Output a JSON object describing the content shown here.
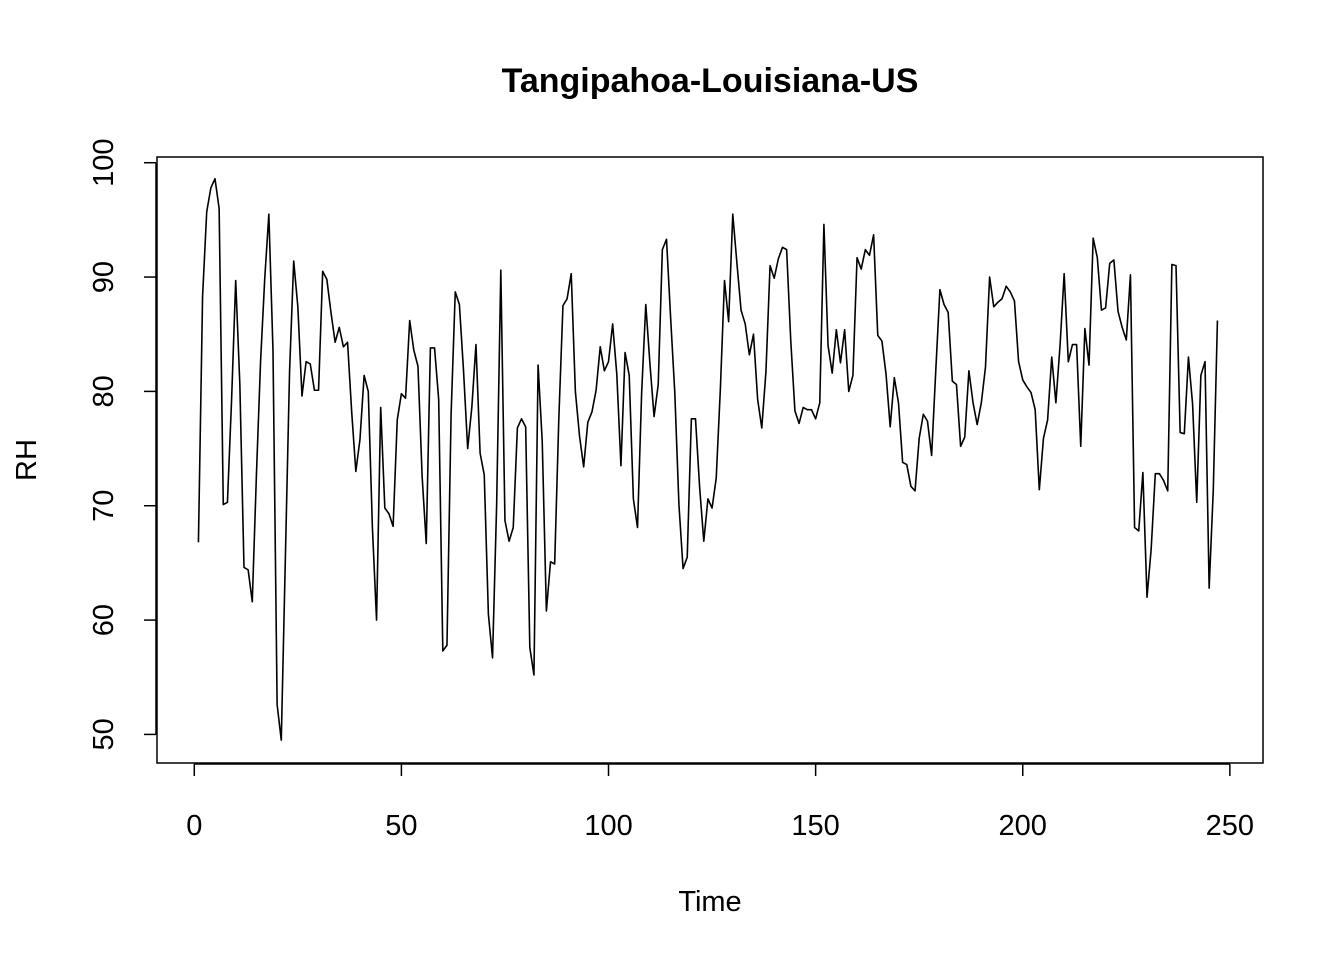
{
  "chart_data": {
    "type": "line",
    "title": "Tangipahoa-Louisiana-US",
    "xlabel": "Time",
    "ylabel": "RH",
    "xlim": [
      -9,
      258
    ],
    "ylim": [
      47.5,
      100.5
    ],
    "x_ticks": [
      0,
      50,
      100,
      150,
      200,
      250
    ],
    "x_tick_labels": [
      "0",
      "50",
      "100",
      "150",
      "200",
      "250"
    ],
    "y_ticks": [
      50,
      60,
      70,
      80,
      90,
      100
    ],
    "y_tick_labels": [
      "50",
      "60",
      "70",
      "80",
      "90",
      "100"
    ],
    "grid": false,
    "series": [
      {
        "color": "#000000",
        "x_start": 1,
        "values": [
          66.8,
          88.3,
          95.7,
          97.8,
          98.6,
          96.0,
          70.1,
          70.3,
          79.2,
          89.7,
          80.6,
          64.6,
          64.4,
          61.6,
          72.7,
          82.6,
          89.8,
          95.5,
          83.6,
          52.6,
          49.5,
          65.6,
          81.7,
          91.4,
          87.4,
          79.6,
          82.6,
          82.4,
          80.1,
          80.1,
          90.5,
          89.8,
          86.9,
          84.3,
          85.6,
          83.9,
          84.3,
          78.2,
          73.0,
          75.8,
          81.4,
          80.0,
          68.1,
          60.0,
          78.6,
          69.8,
          69.3,
          68.2,
          77.5,
          79.8,
          79.4,
          86.2,
          83.6,
          82.2,
          72.6,
          66.7,
          83.8,
          83.8,
          79.3,
          57.3,
          57.8,
          78.0,
          88.7,
          87.6,
          81.8,
          75.0,
          78.6,
          84.1,
          74.6,
          72.7,
          60.5,
          56.7,
          70.2,
          90.6,
          68.7,
          66.9,
          68.1,
          76.8,
          77.6,
          76.9,
          57.6,
          55.2,
          82.3,
          75.6,
          60.8,
          65.1,
          64.9,
          77.6,
          87.5,
          88.1,
          90.3,
          80.0,
          76.1,
          73.4,
          77.3,
          78.2,
          80.1,
          83.9,
          81.8,
          82.6,
          85.9,
          81.5,
          73.5,
          83.4,
          81.4,
          70.6,
          68.1,
          79.9,
          87.6,
          82.4,
          77.8,
          80.6,
          92.4,
          93.3,
          86.4,
          79.9,
          70.1,
          64.5,
          65.5,
          77.6,
          77.6,
          71.6,
          66.9,
          70.6,
          69.8,
          72.4,
          80.2,
          89.7,
          86.1,
          95.5,
          91.2,
          87.1,
          85.9,
          83.2,
          85.0,
          79.3,
          76.8,
          81.7,
          91.0,
          89.9,
          91.6,
          92.6,
          92.4,
          84.4,
          78.3,
          77.2,
          78.6,
          78.4,
          78.4,
          77.6,
          79.0,
          94.6,
          84.0,
          81.6,
          85.4,
          82.5,
          85.4,
          80.0,
          81.4,
          91.7,
          90.7,
          92.4,
          91.9,
          93.7,
          84.9,
          84.4,
          81.5,
          76.9,
          81.2,
          79.0,
          73.8,
          73.6,
          71.7,
          71.3,
          75.9,
          78.0,
          77.4,
          74.4,
          81.8,
          88.9,
          87.6,
          86.9,
          80.9,
          80.6,
          75.2,
          76.0,
          81.8,
          79.0,
          77.1,
          79.0,
          82.1,
          90.0,
          87.4,
          87.8,
          88.1,
          89.2,
          88.7,
          87.9,
          82.6,
          81.0,
          80.4,
          79.9,
          78.4,
          71.4,
          75.9,
          77.5,
          83.0,
          79.0,
          84.0,
          90.3,
          82.6,
          84.1,
          84.1,
          75.2,
          85.5,
          82.3,
          93.4,
          91.7,
          87.1,
          87.3,
          91.2,
          91.5,
          87.0,
          85.6,
          84.5,
          90.2,
          68.1,
          67.8,
          72.9,
          62.0,
          66.2,
          72.8,
          72.8,
          72.2,
          71.3,
          91.1,
          91.0,
          76.4,
          76.3,
          83.0,
          78.9,
          70.3,
          81.4,
          82.6,
          62.8,
          71.4,
          86.2
        ]
      }
    ]
  }
}
